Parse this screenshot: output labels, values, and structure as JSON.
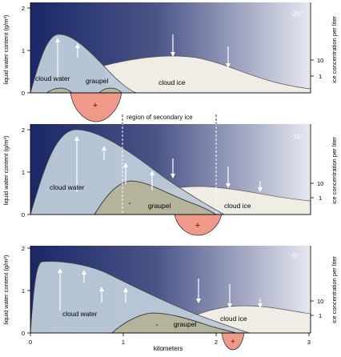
{
  "panels": [
    {
      "id": "p25",
      "temperature": "-25°",
      "labels": {
        "cloud_water": "cloud water",
        "graupel": "graupel",
        "cloud_ice": "cloud ice",
        "graupel_charge": "",
        "ice_charge": "+"
      }
    },
    {
      "id": "p15",
      "temperature": "-15°",
      "labels": {
        "cloud_water": "cloud water",
        "graupel": "graupel",
        "cloud_ice": "cloud ice",
        "graupel_charge": "-",
        "ice_charge": "+"
      }
    },
    {
      "id": "p5",
      "temperature": "-5°",
      "labels": {
        "cloud_water": "cloud water",
        "graupel": "graupel",
        "cloud_ice": "cloud ice",
        "graupel_charge": "-",
        "ice_charge": "+"
      }
    }
  ],
  "left_axis": {
    "label": "liquid water content (g/m³)",
    "ticks": [
      "2",
      "1",
      "0"
    ]
  },
  "right_axis": {
    "label": "ice concentration per liter",
    "ticks": [
      "10",
      "1"
    ]
  },
  "x_axis": {
    "label": "kilometers",
    "ticks": [
      "0",
      "1",
      "2",
      "3"
    ]
  },
  "region_label": "region of secondary ice",
  "colors": {
    "sky_dark": "#1a2766",
    "sky_light": "#e8eaf2",
    "cloud_water": "#bccbd8",
    "cloud_ice": "#f0ede4",
    "graupel": "#b5b39a",
    "positive_charge": "#ef9a88"
  }
}
